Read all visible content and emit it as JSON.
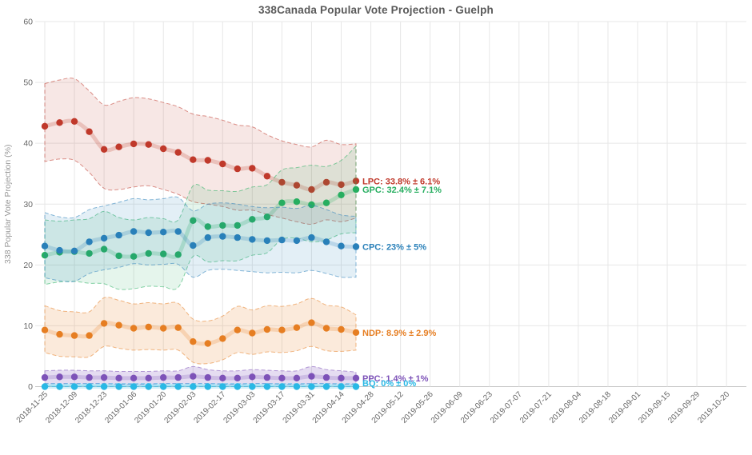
{
  "chart_data": {
    "type": "line",
    "title": "338Canada Popular Vote Projection - Guelph",
    "ylabel": "338 Popular Vote Projection (%)",
    "ylim": [
      0,
      60
    ],
    "y_ticks": [
      0,
      10,
      20,
      30,
      40,
      50,
      60
    ],
    "grid": true,
    "legend_position": "end-of-line labels",
    "x_tick_labels": [
      "2018-11-25",
      "2018-12-09",
      "2018-12-23",
      "2019-01-06",
      "2019-01-20",
      "2019-02-03",
      "2019-02-17",
      "2019-03-03",
      "2019-03-17",
      "2019-03-31",
      "2019-04-14",
      "2019-04-28",
      "2019-05-12",
      "2019-05-26",
      "2019-06-09",
      "2019-06-23",
      "2019-07-07",
      "2019-07-21",
      "2019-08-04",
      "2019-08-18",
      "2019-09-01",
      "2019-09-15",
      "2019-09-29",
      "2019-10-20"
    ],
    "point_dates": [
      "2018-11-25",
      "2018-12-02",
      "2018-12-09",
      "2018-12-16",
      "2018-12-23",
      "2018-12-30",
      "2019-01-06",
      "2019-01-13",
      "2019-01-20",
      "2019-01-27",
      "2019-02-03",
      "2019-02-10",
      "2019-02-17",
      "2019-02-24",
      "2019-03-03",
      "2019-03-10",
      "2019-03-17",
      "2019-03-24",
      "2019-03-31",
      "2019-04-07",
      "2019-04-14",
      "2019-04-21"
    ],
    "series": [
      {
        "name": "LPC",
        "label": "LPC: 33.8% ± 6.1%",
        "color": "#c0392b",
        "band_fill_opacity": 0.12,
        "values": [
          42.8,
          43.4,
          43.6,
          41.9,
          39.0,
          39.4,
          39.9,
          39.8,
          39.1,
          38.5,
          37.3,
          37.2,
          36.6,
          35.8,
          35.9,
          34.6,
          33.6,
          33.1,
          32.4,
          33.6,
          33.2,
          33.8
        ],
        "upper": [
          49.8,
          50.4,
          50.6,
          48.6,
          46.3,
          46.9,
          47.5,
          47.3,
          46.7,
          46.0,
          44.8,
          44.4,
          43.8,
          43.0,
          42.7,
          41.4,
          40.4,
          39.8,
          39.4,
          40.5,
          39.8,
          39.9
        ],
        "lower": [
          37.0,
          37.4,
          37.2,
          35.2,
          32.6,
          32.4,
          32.8,
          33.0,
          32.4,
          31.6,
          30.4,
          30.0,
          29.6,
          29.0,
          29.0,
          28.3,
          27.7,
          27.1,
          26.7,
          27.4,
          27.1,
          27.7
        ]
      },
      {
        "name": "GPC",
        "label": "GPC: 32.4% ± 7.1%",
        "color": "#27ae60",
        "band_fill_opacity": 0.12,
        "values": [
          21.6,
          22.1,
          22.2,
          21.9,
          22.6,
          21.5,
          21.4,
          21.9,
          21.8,
          21.7,
          27.3,
          26.3,
          26.5,
          26.5,
          27.5,
          27.9,
          30.2,
          30.4,
          29.9,
          30.2,
          31.5,
          32.4
        ],
        "upper": [
          27.4,
          27.2,
          27.4,
          27.6,
          28.8,
          27.8,
          27.4,
          27.8,
          27.6,
          27.4,
          33.0,
          32.3,
          32.2,
          32.1,
          32.8,
          33.2,
          35.6,
          36.0,
          36.4,
          36.2,
          37.2,
          39.5
        ],
        "lower": [
          16.8,
          17.2,
          17.3,
          17.0,
          16.9,
          16.0,
          16.1,
          16.5,
          16.4,
          16.3,
          21.4,
          20.5,
          20.7,
          20.7,
          21.6,
          22.0,
          24.2,
          24.4,
          23.8,
          24.1,
          25.1,
          25.3
        ]
      },
      {
        "name": "CPC",
        "label": "CPC: 23% ± 5%",
        "color": "#2980b9",
        "band_fill_opacity": 0.13,
        "values": [
          23.1,
          22.4,
          22.3,
          23.8,
          24.4,
          24.9,
          25.5,
          25.3,
          25.4,
          25.5,
          23.2,
          24.5,
          24.7,
          24.5,
          24.2,
          24.0,
          24.1,
          24.0,
          24.5,
          23.8,
          23.1,
          23.0
        ],
        "upper": [
          28.6,
          27.9,
          27.8,
          29.1,
          29.7,
          30.3,
          30.9,
          30.7,
          30.9,
          31.1,
          28.9,
          30.0,
          30.2,
          30.0,
          29.6,
          29.4,
          29.5,
          29.3,
          29.8,
          29.1,
          28.2,
          28.0
        ],
        "lower": [
          17.9,
          17.4,
          17.3,
          18.6,
          19.2,
          19.6,
          20.2,
          20.0,
          20.1,
          20.1,
          18.0,
          19.1,
          19.3,
          19.1,
          18.9,
          18.7,
          18.8,
          18.7,
          19.1,
          18.6,
          18.0,
          18.0
        ]
      },
      {
        "name": "NDP",
        "label": "NDP: 8.9% ± 2.9%",
        "color": "#e67e22",
        "band_fill_opacity": 0.16,
        "values": [
          9.3,
          8.6,
          8.4,
          8.4,
          10.4,
          10.1,
          9.6,
          9.8,
          9.6,
          9.7,
          7.4,
          7.1,
          7.9,
          9.3,
          8.8,
          9.4,
          9.3,
          9.7,
          10.5,
          9.6,
          9.4,
          8.9
        ],
        "upper": [
          13.3,
          12.5,
          12.3,
          12.3,
          14.6,
          14.2,
          13.6,
          13.8,
          13.6,
          13.7,
          11.1,
          10.8,
          11.6,
          13.2,
          12.6,
          13.3,
          13.2,
          13.6,
          14.5,
          13.4,
          13.1,
          11.8
        ],
        "lower": [
          5.6,
          5.0,
          4.9,
          4.9,
          6.6,
          6.3,
          6.0,
          6.1,
          6.0,
          6.0,
          4.0,
          3.8,
          4.4,
          5.6,
          5.3,
          5.7,
          5.6,
          5.9,
          6.6,
          5.9,
          5.8,
          6.0
        ]
      },
      {
        "name": "PPC",
        "label": "PPC: 1.4% ± 1%",
        "color": "#7d52b8",
        "band_fill_opacity": 0.2,
        "values": [
          1.5,
          1.6,
          1.6,
          1.5,
          1.5,
          1.4,
          1.4,
          1.4,
          1.5,
          1.5,
          1.7,
          1.5,
          1.4,
          1.4,
          1.6,
          1.5,
          1.4,
          1.4,
          1.7,
          1.5,
          1.4,
          1.4
        ],
        "upper": [
          2.6,
          2.7,
          2.7,
          2.6,
          2.6,
          2.5,
          2.5,
          2.5,
          2.6,
          2.6,
          3.3,
          2.8,
          2.6,
          2.6,
          2.8,
          2.7,
          2.6,
          2.6,
          3.3,
          2.8,
          2.6,
          2.4
        ],
        "lower": [
          0.5,
          0.5,
          0.5,
          0.5,
          0.5,
          0.4,
          0.4,
          0.4,
          0.5,
          0.5,
          0.5,
          0.5,
          0.4,
          0.4,
          0.5,
          0.5,
          0.4,
          0.4,
          0.5,
          0.5,
          0.4,
          0.4
        ]
      },
      {
        "name": "BQ",
        "label": "BQ: 0% ± 0%",
        "color": "#29b8e5",
        "band_fill_opacity": 0.25,
        "values": [
          0,
          0,
          0,
          0,
          0,
          0,
          0,
          0,
          0,
          0,
          0,
          0,
          0,
          0,
          0,
          0,
          0,
          0,
          0,
          0,
          0,
          0
        ],
        "upper": [
          0.5,
          0.5,
          0.5,
          0.5,
          0.5,
          0.5,
          0.5,
          0.5,
          0.5,
          0.5,
          0.5,
          0.5,
          0.5,
          0.5,
          0.5,
          0.5,
          0.5,
          0.5,
          0.5,
          0.5,
          0.5,
          0.5
        ],
        "lower": [
          0,
          0,
          0,
          0,
          0,
          0,
          0,
          0,
          0,
          0,
          0,
          0,
          0,
          0,
          0,
          0,
          0,
          0,
          0,
          0,
          0,
          0
        ]
      }
    ]
  }
}
